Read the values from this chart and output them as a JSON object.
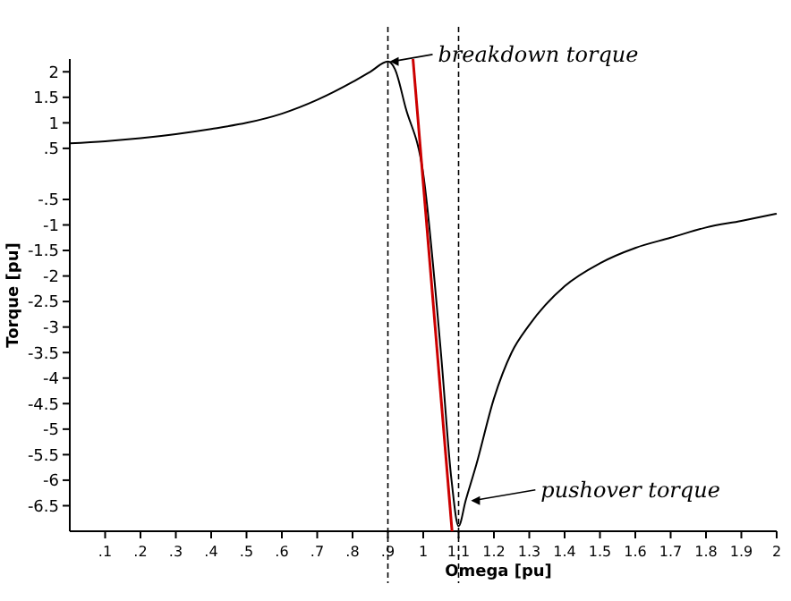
{
  "chart_data": {
    "type": "line",
    "xlabel": "Omega [pu]",
    "ylabel": "Torque [pu]",
    "xlim": [
      0,
      2
    ],
    "ylim": [
      -7,
      2.25
    ],
    "xticks": [
      {
        "value": 0.1,
        "label": ".1"
      },
      {
        "value": 0.2,
        "label": ".2"
      },
      {
        "value": 0.3,
        "label": ".3"
      },
      {
        "value": 0.4,
        "label": ".4"
      },
      {
        "value": 0.5,
        "label": ".5"
      },
      {
        "value": 0.6,
        "label": ".6"
      },
      {
        "value": 0.7,
        "label": ".7"
      },
      {
        "value": 0.8,
        "label": ".8"
      },
      {
        "value": 0.9,
        "label": ".9"
      },
      1,
      1.1,
      1.2,
      1.3,
      1.4,
      1.5,
      1.6,
      1.7,
      1.8,
      1.9,
      2
    ],
    "yticks": [
      2,
      1.5,
      1,
      {
        "value": 0.5,
        "label": ".5"
      },
      {
        "value": -0.5,
        "label": "-.5"
      },
      -1,
      -1.5,
      -2,
      -2.5,
      -3,
      -3.5,
      -4,
      -4.5,
      -5,
      -5.5,
      -6,
      -6.5
    ],
    "grid": false,
    "marker": "none",
    "line_style": "solid",
    "series": [
      {
        "color": "#000000",
        "x": [
          0,
          0.1,
          0.2,
          0.3,
          0.4,
          0.5,
          0.6,
          0.7,
          0.8,
          0.85,
          0.9,
          0.92,
          0.95,
          1.0,
          1.05,
          1.08,
          1.1,
          1.12,
          1.15,
          1.2,
          1.25,
          1.3,
          1.4,
          1.5,
          1.6,
          1.7,
          1.8,
          1.9,
          2.0
        ],
        "values": [
          0.6,
          0.64,
          0.7,
          0.78,
          0.88,
          1.0,
          1.18,
          1.45,
          1.8,
          2.0,
          2.2,
          2.05,
          1.3,
          0,
          -3.5,
          -6.0,
          -6.9,
          -6.4,
          -5.7,
          -4.4,
          -3.5,
          -2.96,
          -2.2,
          -1.75,
          -1.45,
          -1.25,
          -1.05,
          -0.92,
          -0.78
        ]
      },
      {
        "color": "#cc0000",
        "x": [
          0.971,
          1.0815
        ],
        "values": [
          2.25,
          -7
        ]
      }
    ],
    "ref_lines": [
      {
        "axis": "x",
        "value": 0.9,
        "line_style": "dashed",
        "color": "#000000"
      },
      {
        "axis": "x",
        "value": 1.1,
        "line_style": "dashed",
        "color": "#000000"
      }
    ],
    "annotations": [
      {
        "text": "breakdown torque",
        "x": 0.9,
        "y": 2.2
      },
      {
        "text": "pushover torque",
        "x": 1.13,
        "y": -6.4
      }
    ]
  }
}
